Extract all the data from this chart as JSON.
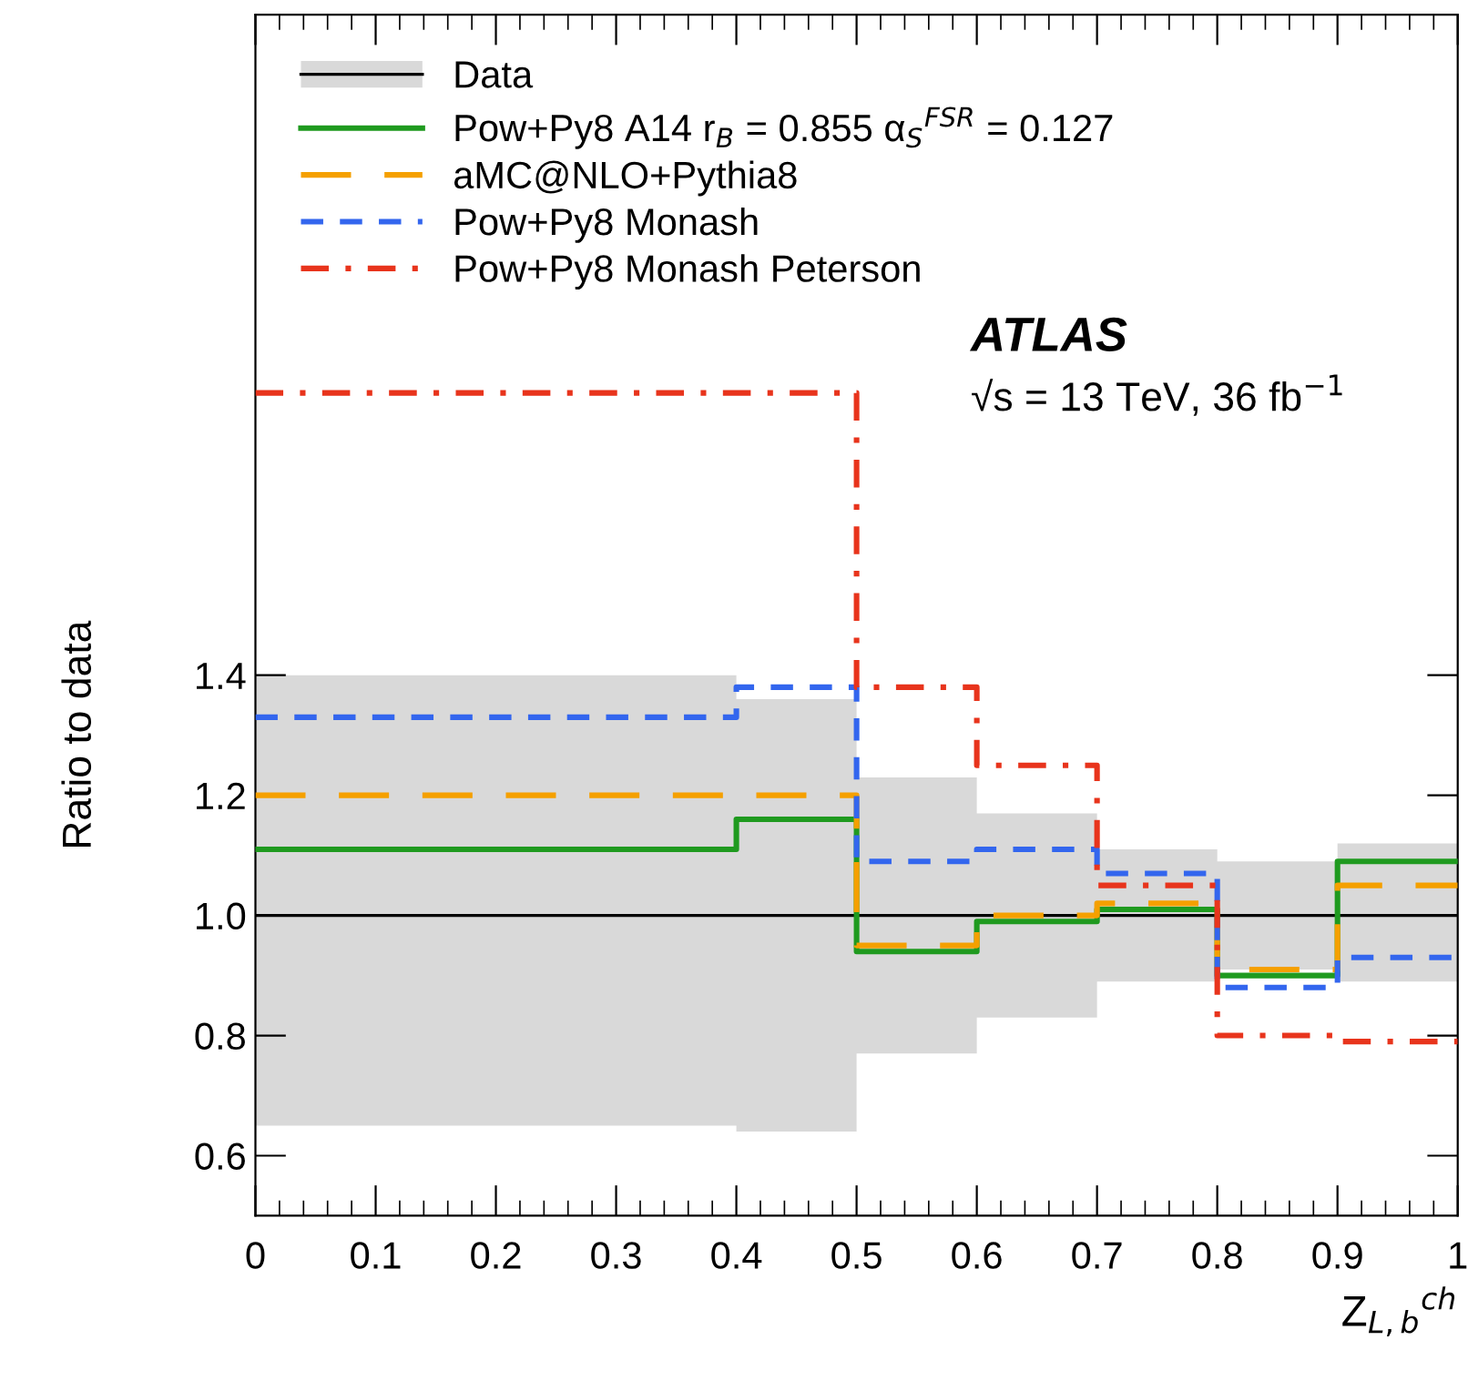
{
  "chart_data": {
    "type": "step",
    "xlabel": "Z$_{L,b}$$^{ch}$",
    "ylabel": "Ratio to data",
    "x": [
      0,
      0.4,
      0.5,
      0.6,
      0.7,
      0.8,
      0.9,
      1.0
    ],
    "series": [
      {
        "name": "Data",
        "color": "#000000",
        "line_style": "solid",
        "values": [
          1.0,
          1.0,
          1.0,
          1.0,
          1.0,
          1.0,
          1.0,
          1.0
        ],
        "lower": [
          0.65,
          0.64,
          0.77,
          0.83,
          0.89,
          0.91,
          0.89,
          0.89
        ],
        "upper": [
          1.4,
          1.36,
          1.23,
          1.17,
          1.11,
          1.09,
          1.12,
          1.12
        ]
      },
      {
        "name": "Pow+Py8 A14 r$_{B}$ = 0.855 α$_{S}$$^{FSR}$ = 0.127",
        "color": "#1f9a1f",
        "line_style": "solid",
        "values": [
          1.11,
          1.16,
          0.94,
          0.99,
          1.01,
          0.9,
          1.09,
          1.09
        ]
      },
      {
        "name": "aMC@NLO+Pythia8",
        "color": "#f5a000",
        "line_style": "longdash",
        "values": [
          1.2,
          1.2,
          0.95,
          1.0,
          1.02,
          0.91,
          1.05,
          1.05
        ]
      },
      {
        "name": "Pow+Py8 Monash",
        "color": "#3366ee",
        "line_style": "dashed",
        "values": [
          1.33,
          1.38,
          1.09,
          1.11,
          1.07,
          0.88,
          0.93,
          0.93
        ]
      },
      {
        "name": "Pow+Py8 Monash Peterson",
        "color": "#e8341c",
        "line_style": "dashdot",
        "values": [
          1.87,
          1.87,
          1.38,
          1.25,
          1.05,
          0.8,
          0.79,
          0.79
        ]
      }
    ],
    "xlim": [
      0,
      1
    ],
    "ylim": [
      0.5,
      2.5
    ],
    "xticks": [
      0,
      0.1,
      0.2,
      0.3,
      0.4,
      0.5,
      0.6,
      0.7,
      0.8,
      0.9,
      1
    ],
    "yticks": [
      0.6,
      0.8,
      {
        "value": 1,
        "label": "1.0"
      },
      1.2,
      1.4
    ],
    "grid": false,
    "legend": "top left",
    "annotations": [
      "ATLAS",
      "√s = 13 TeV, 36 fb$^{−1}$"
    ]
  }
}
